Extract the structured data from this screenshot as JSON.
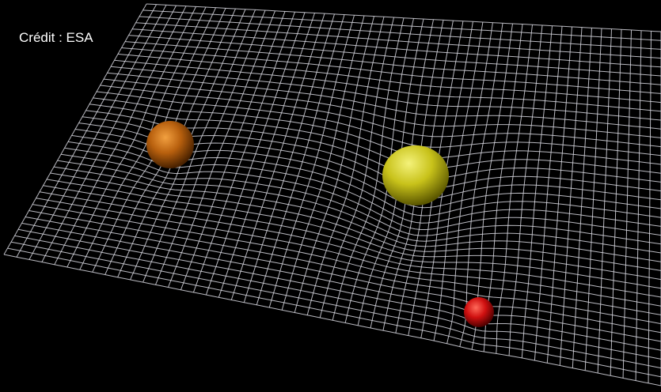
{
  "credit": "Crédit : ESA"
}
